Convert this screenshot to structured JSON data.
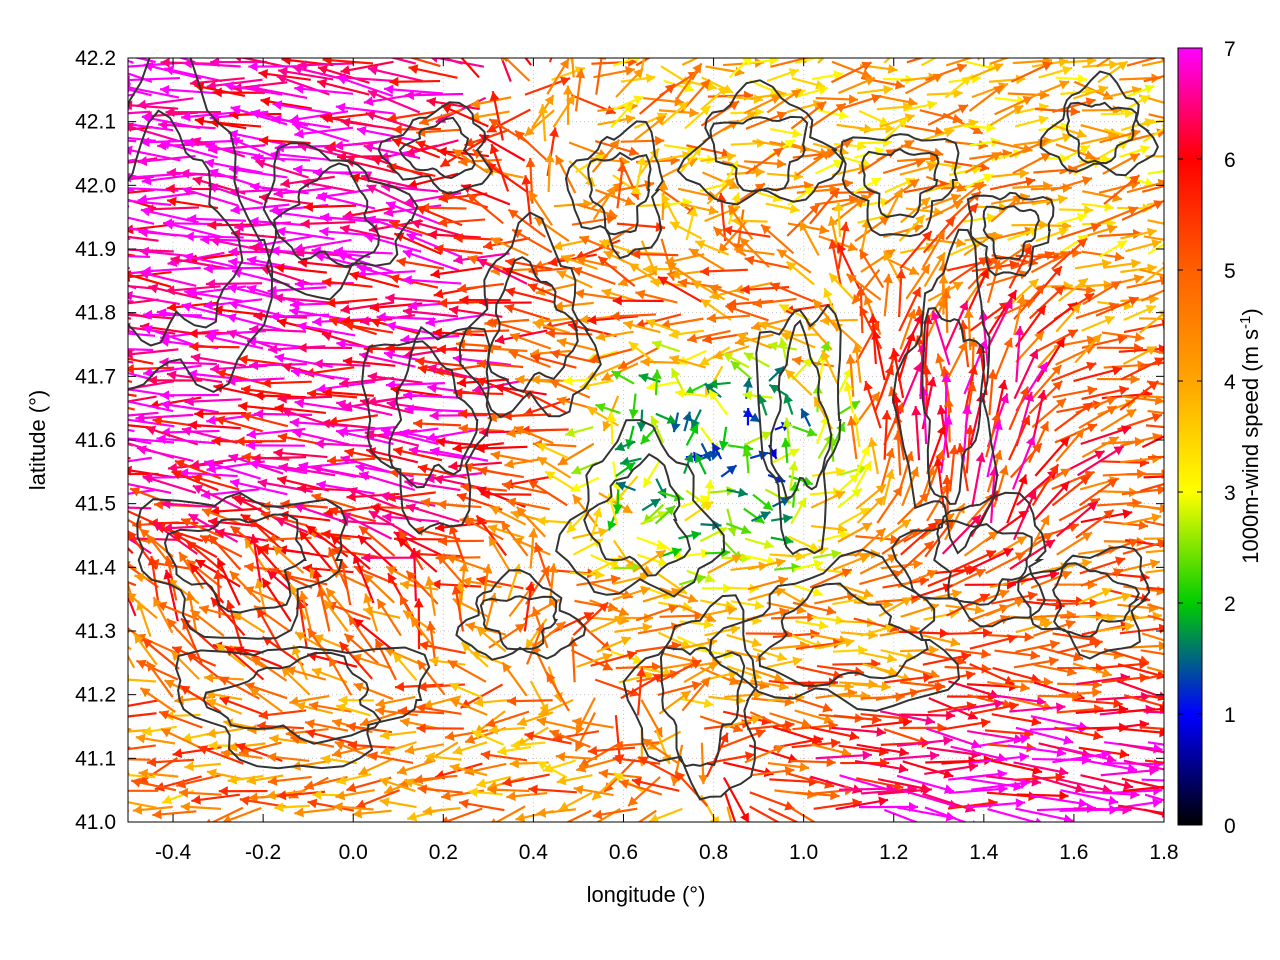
{
  "chart_data": {
    "type": "vector-field",
    "xlabel": "longitude (°)",
    "ylabel": "latitude (°)",
    "xlim": [
      -0.5,
      1.8
    ],
    "ylim": [
      41.0,
      42.2
    ],
    "xticks": [
      "-0.4",
      "-0.2",
      "0.0",
      "0.2",
      "0.4",
      "0.6",
      "0.8",
      "1.0",
      "1.2",
      "1.4",
      "1.6",
      "1.8"
    ],
    "xtick_values": [
      -0.4,
      -0.2,
      0.0,
      0.2,
      0.4,
      0.6,
      0.8,
      1.0,
      1.2,
      1.4,
      1.6,
      1.8
    ],
    "yticks": [
      "41.0",
      "41.1",
      "41.2",
      "41.3",
      "41.4",
      "41.5",
      "41.6",
      "41.7",
      "41.8",
      "41.9",
      "42.0",
      "42.1",
      "42.2"
    ],
    "ytick_values": [
      41.0,
      41.1,
      41.2,
      41.3,
      41.4,
      41.5,
      41.6,
      41.7,
      41.8,
      41.9,
      42.0,
      42.1,
      42.2
    ],
    "grid": true,
    "colorbar": {
      "label": "1000m-wind speed (m s-1)",
      "label_main": "1000m-wind speed (m s",
      "label_sup": "-1",
      "label_close": ")",
      "min": 0,
      "max": 7,
      "ticks": [
        "0",
        "1",
        "2",
        "3",
        "4",
        "5",
        "6",
        "7"
      ],
      "tick_values": [
        0,
        1,
        2,
        3,
        4,
        5,
        6,
        7
      ],
      "colors": [
        "#000000",
        "#0000ff",
        "#00cc00",
        "#ffff00",
        "#ffa500",
        "#ff6000",
        "#ff0000",
        "#ff00ff"
      ]
    },
    "wind_vectors": [
      {
        "region": "northwest",
        "lon": [
          -0.5,
          0.3
        ],
        "lat": [
          41.75,
          42.2
        ],
        "u": -4.5,
        "v": 0.4,
        "speed": 7
      },
      {
        "region": "west-central",
        "lon": [
          -0.5,
          0.45
        ],
        "lat": [
          41.45,
          41.75
        ],
        "u": -5.0,
        "v": 0.3,
        "speed": 6.5
      },
      {
        "region": "southwest",
        "lon": [
          -0.5,
          0.3
        ],
        "lat": [
          41.2,
          41.45
        ],
        "u": -0.8,
        "v": 1.5,
        "speed": 5
      },
      {
        "region": "south-coast",
        "lon": [
          -0.5,
          0.6
        ],
        "lat": [
          41.0,
          41.2
        ],
        "u": -3.0,
        "v": -0.2,
        "speed": 4.5
      },
      {
        "region": "north-central",
        "lon": [
          0.35,
          1.1
        ],
        "lat": [
          41.85,
          42.2
        ],
        "u": 1.5,
        "v": 0.5,
        "speed": 4
      },
      {
        "region": "central-band",
        "lon": [
          0.45,
          1.1
        ],
        "lat": [
          41.75,
          41.9
        ],
        "u": -4.5,
        "v": 0.1,
        "speed": 5.5
      },
      {
        "region": "center-calm",
        "lon": [
          0.55,
          1.1
        ],
        "lat": [
          41.4,
          41.75
        ],
        "u": 0.6,
        "v": 0.1,
        "speed": 1.5
      },
      {
        "region": "northeast",
        "lon": [
          1.1,
          1.8
        ],
        "lat": [
          41.75,
          42.2
        ],
        "u": 2.5,
        "v": 0.3,
        "speed": 4
      },
      {
        "region": "east-jet",
        "lon": [
          1.15,
          1.55
        ],
        "lat": [
          41.4,
          41.8
        ],
        "u": -0.3,
        "v": 4.5,
        "speed": 6.5
      },
      {
        "region": "east",
        "lon": [
          1.5,
          1.8
        ],
        "lat": [
          41.45,
          41.75
        ],
        "u": 3.5,
        "v": 0.2,
        "speed": 5
      },
      {
        "region": "southeast",
        "lon": [
          0.6,
          1.8
        ],
        "lat": [
          41.15,
          41.45
        ],
        "u": 3.5,
        "v": -0.3,
        "speed": 4.5
      },
      {
        "region": "southeast-coast",
        "lon": [
          1.1,
          1.8
        ],
        "lat": [
          41.0,
          41.2
        ],
        "u": 5.0,
        "v": -0.4,
        "speed": 7
      }
    ],
    "contours": "terrain elevation isolines"
  }
}
